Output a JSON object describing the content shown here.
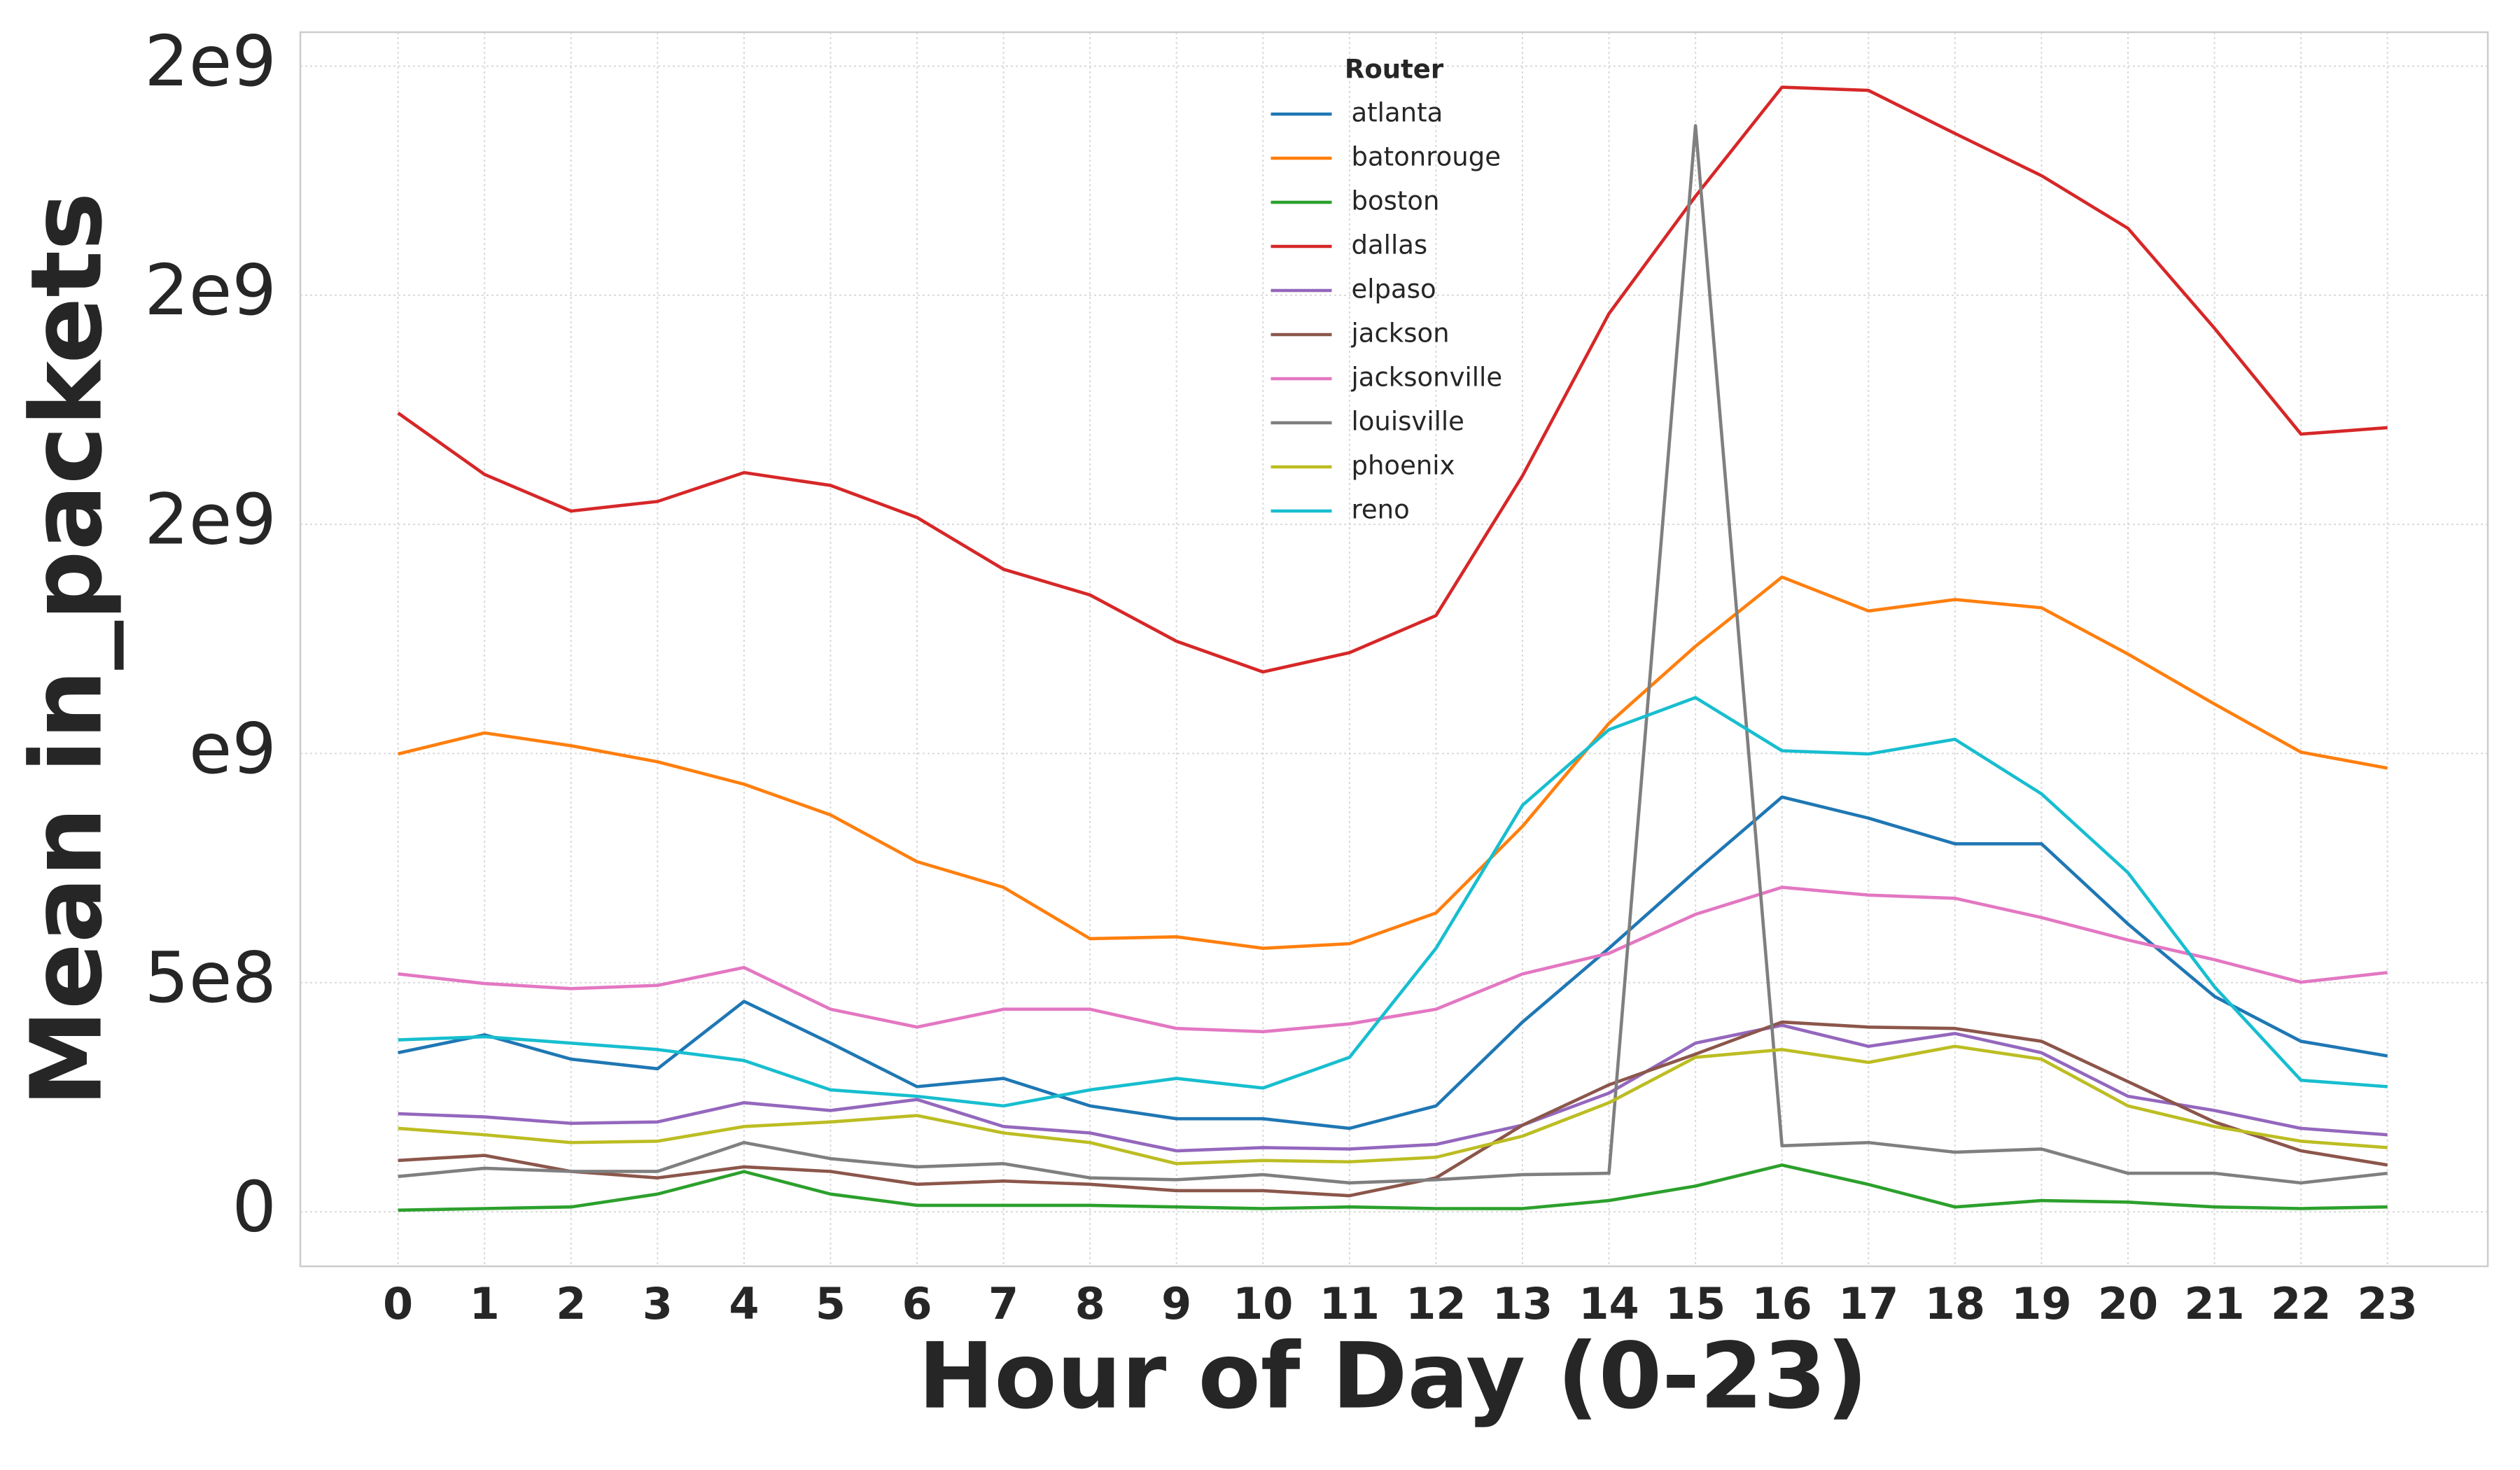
{
  "chart_data": {
    "type": "line",
    "x_label": "Hour of Day (0-23)",
    "y_label": "Mean in_packets",
    "legend_title": "Router",
    "legend": "upper center",
    "grid": true,
    "x": [
      0,
      1,
      2,
      3,
      4,
      5,
      6,
      7,
      8,
      9,
      10,
      11,
      12,
      13,
      14,
      15,
      16,
      17,
      18,
      19,
      20,
      21,
      22,
      23
    ],
    "xlim": [
      -1.13,
      24.16
    ],
    "xticks": [
      0,
      1,
      2,
      3,
      4,
      5,
      6,
      7,
      8,
      9,
      10,
      11,
      12,
      13,
      14,
      15,
      16,
      17,
      18,
      19,
      20,
      21,
      22,
      23
    ],
    "ylim": [
      -119000000,
      2574000000
    ],
    "yticks": [
      0,
      {
        "value": 500000000,
        "label": "5e8"
      },
      {
        "value": 1000000000,
        "label": "e9"
      },
      {
        "value": 1500000000,
        "label": "2e9"
      },
      {
        "value": 2000000000,
        "label": "2e9"
      },
      {
        "value": 2500000000,
        "label": "2e9"
      }
    ],
    "series": [
      {
        "name": "atlanta",
        "color": "#1f77b4",
        "values": [
          347000000,
          386000000,
          333000000,
          312000000,
          459000000,
          368000000,
          273000000,
          291000000,
          231000000,
          203000000,
          203000000,
          182000000,
          231000000,
          414000000,
          575000000,
          743000000,
          905000000,
          859000000,
          803000000,
          803000000,
          628000000,
          470000000,
          372000000,
          340000000
        ]
      },
      {
        "name": "batonrouge",
        "color": "#ff7f0e",
        "values": [
          999000000,
          1045000000,
          1017000000,
          982000000,
          933000000,
          866000000,
          764000000,
          708000000,
          596000000,
          600000000,
          575000000,
          585000000,
          652000000,
          841000000,
          1066000000,
          1234000000,
          1385000000,
          1311000000,
          1336000000,
          1318000000,
          1217000000,
          1108000000,
          1003000000,
          968000000
        ]
      },
      {
        "name": "boston",
        "color": "#2ca02c",
        "values": [
          3500000,
          7000000,
          10500000,
          38600000,
          87700000,
          38600000,
          14000000,
          14000000,
          14000000,
          10500000,
          7000000,
          10500000,
          7000000,
          7000000,
          24500000,
          56100000,
          102000000,
          59600000,
          10500000,
          24500000,
          21000000,
          10500000,
          7000000,
          10500000
        ]
      },
      {
        "name": "dallas",
        "color": "#d62728",
        "values": [
          1743000000,
          1609000000,
          1529000000,
          1550000000,
          1613000000,
          1585000000,
          1515000000,
          1402000000,
          1346000000,
          1245000000,
          1178000000,
          1220000000,
          1301000000,
          1606000000,
          1960000000,
          2216000000,
          2454000000,
          2447000000,
          2353000000,
          2261000000,
          2146000000,
          1928000000,
          1697000000,
          1711000000
        ]
      },
      {
        "name": "elpaso",
        "color": "#9467bd",
        "values": [
          214000000,
          207000000,
          193000000,
          196000000,
          238000000,
          221000000,
          245000000,
          186000000,
          172000000,
          133000000,
          140000000,
          137000000,
          147000000,
          189000000,
          259000000,
          368000000,
          407000000,
          361000000,
          389000000,
          347000000,
          252000000,
          221000000,
          182000000,
          168000000
        ]
      },
      {
        "name": "jackson",
        "color": "#8c564b",
        "values": [
          112000000,
          123000000,
          88000000,
          74000000,
          98000000,
          88000000,
          60000000,
          67000000,
          60000000,
          46000000,
          46000000,
          35000000,
          74000000,
          189000000,
          277000000,
          344000000,
          414000000,
          403000000,
          400000000,
          372000000,
          284000000,
          196000000,
          133000000,
          102000000
        ]
      },
      {
        "name": "jacksonville",
        "color": "#e377c2",
        "values": [
          519000000,
          498000000,
          487000000,
          494000000,
          533000000,
          442000000,
          403000000,
          442000000,
          442000000,
          400000000,
          393000000,
          410000000,
          442000000,
          519000000,
          564000000,
          649000000,
          708000000,
          691000000,
          684000000,
          642000000,
          593000000,
          550000000,
          501000000,
          522000000
        ]
      },
      {
        "name": "louisville",
        "color": "#7f7f7f",
        "values": [
          77000000,
          95000000,
          88000000,
          88000000,
          151000000,
          116000000,
          98000000,
          105000000,
          74000000,
          70000000,
          81000000,
          63000000,
          70000000,
          81000000,
          84000000,
          2370000000,
          144000000,
          151000000,
          130000000,
          137000000,
          84000000,
          84000000,
          63000000,
          84000000
        ]
      },
      {
        "name": "phoenix",
        "color": "#bcbd22",
        "values": [
          182000000,
          168000000,
          151000000,
          154000000,
          186000000,
          196000000,
          210000000,
          172000000,
          151000000,
          105000000,
          112000000,
          109000000,
          119000000,
          165000000,
          238000000,
          337000000,
          354000000,
          326000000,
          361000000,
          333000000,
          231000000,
          186000000,
          154000000,
          140000000
        ]
      },
      {
        "name": "reno",
        "color": "#17becf",
        "values": [
          375000000,
          382000000,
          368000000,
          354000000,
          330000000,
          266000000,
          252000000,
          231000000,
          266000000,
          291000000,
          270000000,
          337000000,
          575000000,
          887000000,
          1052000000,
          1122000000,
          1006000000,
          999000000,
          1031000000,
          912000000,
          740000000,
          491000000,
          287000000,
          273000000
        ]
      }
    ]
  }
}
